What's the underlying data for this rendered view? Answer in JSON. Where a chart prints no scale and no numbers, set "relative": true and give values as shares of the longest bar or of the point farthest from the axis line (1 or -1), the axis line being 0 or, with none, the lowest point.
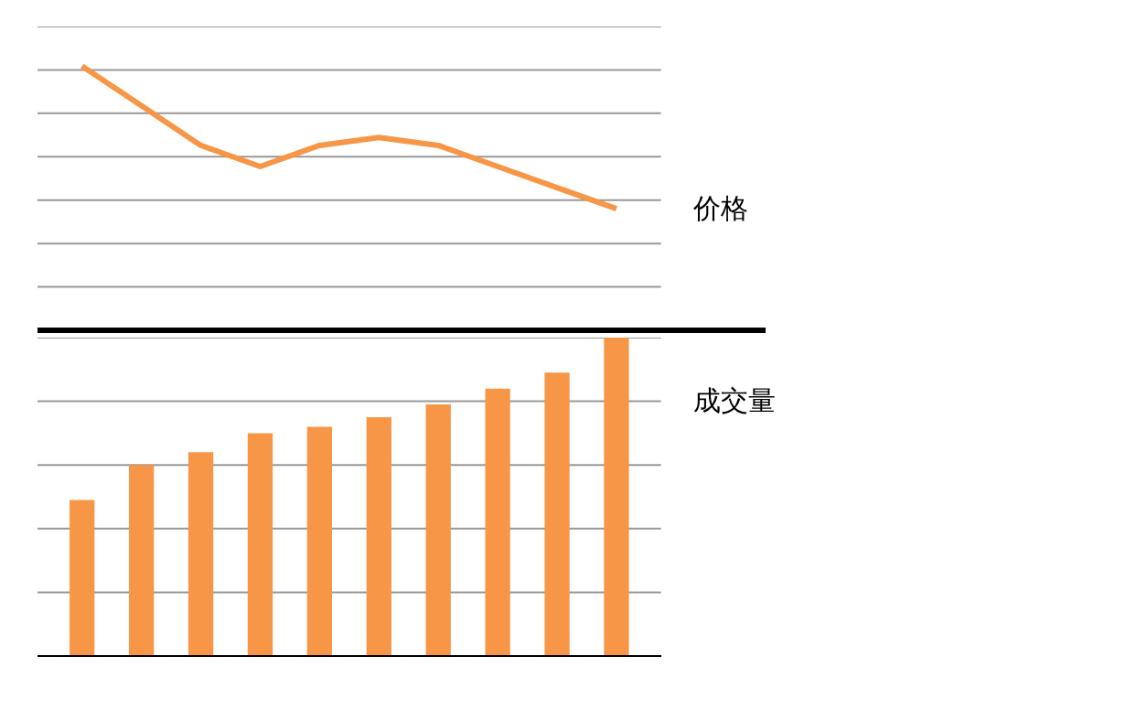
{
  "chart_data": [
    {
      "type": "line",
      "relative": true,
      "categories": [
        null,
        null,
        null,
        null,
        null,
        null,
        null,
        null,
        null,
        null
      ],
      "grid": "y",
      "annotations": [
        "价格"
      ],
      "series": [
        {
          "color": "#f79646",
          "values": [
            1,
            0.85,
            0.7,
            0.62,
            0.7,
            0.73,
            0.7,
            0.62,
            0.54,
            0.46
          ]
        }
      ]
    },
    {
      "type": "bar",
      "relative": true,
      "categories": [
        null,
        null,
        null,
        null,
        null,
        null,
        null,
        null,
        null,
        null
      ],
      "grid": "y",
      "annotations": [
        "成交量"
      ],
      "series": [
        {
          "color": "#f79646",
          "values": [
            0.49,
            0.6,
            0.64,
            0.7,
            0.72,
            0.75,
            0.79,
            0.84,
            0.89,
            1.0
          ]
        }
      ]
    }
  ]
}
